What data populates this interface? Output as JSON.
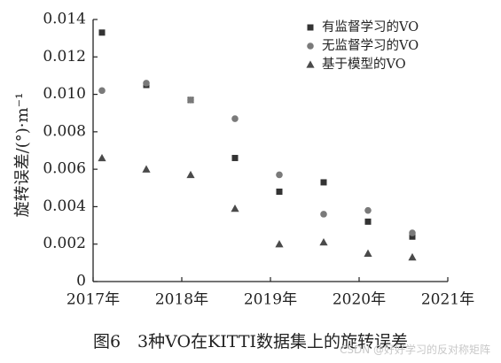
{
  "chart_data": {
    "type": "scatter",
    "title": "",
    "xlabel": "",
    "ylabel": "旋转误差/(°)·m⁻¹",
    "xlim": [
      2017,
      2021
    ],
    "ylim": [
      0,
      0.014
    ],
    "x_ticks": [
      2017,
      2018,
      2019,
      2020,
      2021
    ],
    "x_tick_labels": [
      "2017年",
      "2018年",
      "2019年",
      "2020年",
      "2021年"
    ],
    "y_ticks": [
      0,
      0.002,
      0.004,
      0.006,
      0.008,
      0.01,
      0.012,
      0.014
    ],
    "y_tick_labels": [
      "0",
      "0.002",
      "0.004",
      "0.006",
      "0.008",
      "0.010",
      "0.012",
      "0.014"
    ],
    "legend_position": "top-right",
    "grid": false,
    "series": [
      {
        "name": "有监督学习的VO",
        "marker": "square",
        "color": "#333333",
        "points": [
          [
            2017.1,
            0.0133
          ],
          [
            2017.6,
            0.0105
          ],
          [
            2018.1,
            0.0097
          ],
          [
            2018.6,
            0.0066
          ],
          [
            2019.1,
            0.0048
          ],
          [
            2019.6,
            0.0053
          ],
          [
            2020.1,
            0.0032
          ],
          [
            2020.6,
            0.0024
          ]
        ]
      },
      {
        "name": "无监督学习的VO",
        "marker": "circle",
        "color": "#7a7a7a",
        "points": [
          [
            2017.1,
            0.0102
          ],
          [
            2017.6,
            0.0106
          ],
          [
            2018.1,
            0.0097
          ],
          [
            2018.6,
            0.0087
          ],
          [
            2019.1,
            0.0057
          ],
          [
            2019.6,
            0.0036
          ],
          [
            2020.1,
            0.0038
          ],
          [
            2020.6,
            0.0026
          ]
        ]
      },
      {
        "name": "基于模型的VO",
        "marker": "triangle",
        "color": "#4a4a4a",
        "points": [
          [
            2017.1,
            0.0066
          ],
          [
            2017.6,
            0.006
          ],
          [
            2018.1,
            0.0057
          ],
          [
            2018.6,
            0.0039
          ],
          [
            2019.1,
            0.002
          ],
          [
            2019.6,
            0.0021
          ],
          [
            2020.1,
            0.0015
          ],
          [
            2020.6,
            0.0013
          ]
        ]
      }
    ]
  },
  "caption": "图6　3种VO在KITTI数据集上的旋转误差",
  "watermark": "CSDN @好好学习的反对称矩阵"
}
